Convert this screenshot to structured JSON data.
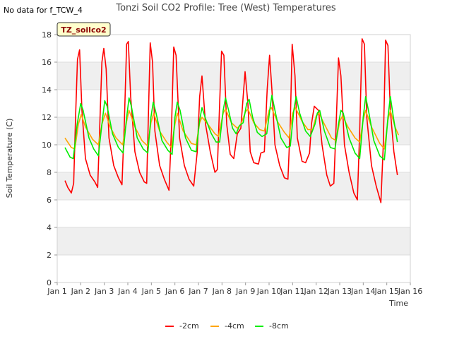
{
  "chart_data": {
    "type": "line",
    "title": "Tonzi Soil CO2 Profile: Tree (West) Temperatures",
    "no_data_note": "No data for f_TCW_4",
    "badge": "TZ_soilco2",
    "xlabel": "Time",
    "ylabel": "Soil Temperature (C)",
    "xlim": [
      1,
      16
    ],
    "ylim": [
      0,
      18
    ],
    "x_ticks": [
      {
        "v": 1,
        "label": "Jan 1"
      },
      {
        "v": 2,
        "label": "Jan 2"
      },
      {
        "v": 3,
        "label": "Jan 3"
      },
      {
        "v": 4,
        "label": "Jan 4"
      },
      {
        "v": 5,
        "label": "Jan 5"
      },
      {
        "v": 6,
        "label": "Jan 6"
      },
      {
        "v": 7,
        "label": "Jan 7"
      },
      {
        "v": 8,
        "label": "Jan 8"
      },
      {
        "v": 9,
        "label": "Jan 9"
      },
      {
        "v": 10,
        "label": "Jan 10"
      },
      {
        "v": 11,
        "label": "Jan 11"
      },
      {
        "v": 12,
        "label": "Jan 12"
      },
      {
        "v": 13,
        "label": "Jan 13"
      },
      {
        "v": 14,
        "label": "Jan 14"
      },
      {
        "v": 15,
        "label": "Jan 15"
      },
      {
        "v": 16,
        "label": "Jan 16"
      }
    ],
    "y_ticks": [
      0,
      2,
      4,
      6,
      8,
      10,
      12,
      14,
      16,
      18
    ],
    "series": [
      {
        "name": "-2cm",
        "color": "#ff0000",
        "points": [
          [
            1.33,
            7.4
          ],
          [
            1.45,
            6.9
          ],
          [
            1.6,
            6.5
          ],
          [
            1.7,
            7.2
          ],
          [
            1.78,
            12.0
          ],
          [
            1.86,
            16.2
          ],
          [
            1.95,
            16.9
          ],
          [
            2.05,
            12.5
          ],
          [
            2.2,
            9.0
          ],
          [
            2.4,
            7.8
          ],
          [
            2.6,
            7.3
          ],
          [
            2.72,
            6.9
          ],
          [
            2.8,
            11.0
          ],
          [
            2.9,
            16.0
          ],
          [
            2.98,
            17.0
          ],
          [
            3.08,
            15.5
          ],
          [
            3.2,
            10.5
          ],
          [
            3.4,
            8.5
          ],
          [
            3.6,
            7.6
          ],
          [
            3.75,
            7.1
          ],
          [
            3.85,
            11.5
          ],
          [
            3.95,
            17.3
          ],
          [
            4.02,
            17.5
          ],
          [
            4.12,
            13.5
          ],
          [
            4.3,
            9.5
          ],
          [
            4.5,
            8.0
          ],
          [
            4.7,
            7.3
          ],
          [
            4.8,
            7.2
          ],
          [
            4.88,
            12.5
          ],
          [
            4.95,
            17.4
          ],
          [
            5.05,
            16.0
          ],
          [
            5.15,
            11.0
          ],
          [
            5.35,
            8.5
          ],
          [
            5.55,
            7.5
          ],
          [
            5.75,
            6.7
          ],
          [
            5.85,
            11.0
          ],
          [
            5.95,
            17.1
          ],
          [
            6.05,
            16.5
          ],
          [
            6.2,
            10.5
          ],
          [
            6.4,
            8.5
          ],
          [
            6.6,
            7.5
          ],
          [
            6.8,
            7.0
          ],
          [
            6.95,
            9.5
          ],
          [
            7.05,
            13.5
          ],
          [
            7.15,
            15.0
          ],
          [
            7.3,
            11.5
          ],
          [
            7.5,
            9.5
          ],
          [
            7.7,
            8.0
          ],
          [
            7.8,
            8.2
          ],
          [
            7.9,
            13.0
          ],
          [
            7.98,
            16.8
          ],
          [
            8.08,
            16.5
          ],
          [
            8.2,
            11.5
          ],
          [
            8.35,
            9.3
          ],
          [
            8.5,
            9.0
          ],
          [
            8.65,
            10.8
          ],
          [
            8.8,
            11.2
          ],
          [
            8.9,
            13.5
          ],
          [
            8.98,
            15.3
          ],
          [
            9.1,
            13.0
          ],
          [
            9.2,
            9.5
          ],
          [
            9.35,
            8.7
          ],
          [
            9.55,
            8.6
          ],
          [
            9.65,
            9.4
          ],
          [
            9.8,
            9.5
          ],
          [
            9.92,
            14.0
          ],
          [
            10.02,
            16.5
          ],
          [
            10.12,
            14.0
          ],
          [
            10.25,
            10.0
          ],
          [
            10.45,
            8.5
          ],
          [
            10.65,
            7.6
          ],
          [
            10.8,
            7.5
          ],
          [
            10.9,
            11.5
          ],
          [
            10.98,
            17.3
          ],
          [
            11.1,
            15.0
          ],
          [
            11.2,
            10.5
          ],
          [
            11.4,
            8.8
          ],
          [
            11.55,
            8.7
          ],
          [
            11.72,
            9.4
          ],
          [
            11.8,
            11.5
          ],
          [
            11.92,
            12.8
          ],
          [
            12.1,
            12.5
          ],
          [
            12.25,
            10.0
          ],
          [
            12.45,
            7.8
          ],
          [
            12.6,
            7.0
          ],
          [
            12.75,
            7.2
          ],
          [
            12.85,
            11.5
          ],
          [
            12.95,
            16.3
          ],
          [
            13.05,
            15.0
          ],
          [
            13.2,
            10.0
          ],
          [
            13.4,
            8.0
          ],
          [
            13.6,
            6.5
          ],
          [
            13.75,
            6.0
          ],
          [
            13.85,
            11.0
          ],
          [
            13.95,
            17.7
          ],
          [
            14.05,
            17.3
          ],
          [
            14.15,
            12.0
          ],
          [
            14.35,
            8.5
          ],
          [
            14.55,
            7.0
          ],
          [
            14.75,
            5.8
          ],
          [
            14.85,
            10.0
          ],
          [
            14.95,
            17.6
          ],
          [
            15.05,
            17.2
          ],
          [
            15.15,
            12.5
          ],
          [
            15.3,
            9.5
          ],
          [
            15.45,
            7.8
          ]
        ]
      },
      {
        "name": "-4cm",
        "color": "#ffa500",
        "points": [
          [
            1.33,
            10.5
          ],
          [
            1.6,
            9.8
          ],
          [
            1.75,
            9.7
          ],
          [
            1.9,
            11.5
          ],
          [
            2.02,
            12.2
          ],
          [
            2.2,
            11.3
          ],
          [
            2.5,
            10.4
          ],
          [
            2.75,
            10.0
          ],
          [
            2.9,
            11.5
          ],
          [
            3.05,
            12.3
          ],
          [
            3.25,
            11.3
          ],
          [
            3.5,
            10.5
          ],
          [
            3.78,
            10.0
          ],
          [
            3.95,
            11.7
          ],
          [
            4.05,
            12.5
          ],
          [
            4.3,
            11.3
          ],
          [
            4.6,
            10.3
          ],
          [
            4.85,
            9.9
          ],
          [
            4.98,
            11.6
          ],
          [
            5.1,
            12.3
          ],
          [
            5.35,
            11.0
          ],
          [
            5.65,
            10.2
          ],
          [
            5.85,
            9.8
          ],
          [
            6.0,
            11.5
          ],
          [
            6.1,
            12.3
          ],
          [
            6.35,
            11.0
          ],
          [
            6.7,
            10.1
          ],
          [
            6.9,
            10.0
          ],
          [
            7.05,
            11.6
          ],
          [
            7.15,
            12.0
          ],
          [
            7.4,
            11.5
          ],
          [
            7.7,
            10.8
          ],
          [
            7.85,
            10.6
          ],
          [
            8.05,
            12.3
          ],
          [
            8.15,
            12.6
          ],
          [
            8.4,
            11.6
          ],
          [
            8.65,
            11.2
          ],
          [
            8.8,
            11.5
          ],
          [
            9.0,
            12.4
          ],
          [
            9.1,
            12.6
          ],
          [
            9.35,
            11.6
          ],
          [
            9.6,
            11.1
          ],
          [
            9.8,
            11.0
          ],
          [
            10.0,
            12.5
          ],
          [
            10.1,
            12.7
          ],
          [
            10.35,
            11.7
          ],
          [
            10.65,
            10.9
          ],
          [
            10.85,
            10.5
          ],
          [
            11.0,
            12.3
          ],
          [
            11.12,
            12.7
          ],
          [
            11.4,
            11.7
          ],
          [
            11.65,
            11.1
          ],
          [
            11.85,
            11.1
          ],
          [
            12.0,
            12.1
          ],
          [
            12.12,
            12.3
          ],
          [
            12.35,
            11.5
          ],
          [
            12.65,
            10.5
          ],
          [
            12.85,
            10.3
          ],
          [
            13.0,
            11.7
          ],
          [
            13.12,
            12.1
          ],
          [
            13.35,
            11.3
          ],
          [
            13.65,
            10.5
          ],
          [
            13.85,
            10.2
          ],
          [
            14.0,
            11.8
          ],
          [
            14.1,
            12.5
          ],
          [
            14.35,
            11.3
          ],
          [
            14.7,
            10.1
          ],
          [
            14.9,
            9.7
          ],
          [
            15.05,
            11.8
          ],
          [
            15.15,
            12.5
          ],
          [
            15.35,
            11.3
          ],
          [
            15.5,
            10.7
          ]
        ]
      },
      {
        "name": "-8cm",
        "color": "#00ee00",
        "points": [
          [
            1.33,
            9.8
          ],
          [
            1.55,
            9.1
          ],
          [
            1.68,
            9.0
          ],
          [
            1.85,
            11.5
          ],
          [
            2.0,
            13.0
          ],
          [
            2.1,
            12.5
          ],
          [
            2.35,
            10.5
          ],
          [
            2.55,
            9.7
          ],
          [
            2.75,
            9.2
          ],
          [
            2.9,
            11.5
          ],
          [
            3.02,
            13.2
          ],
          [
            3.12,
            12.8
          ],
          [
            3.35,
            10.8
          ],
          [
            3.6,
            9.8
          ],
          [
            3.8,
            9.4
          ],
          [
            3.95,
            12.0
          ],
          [
            4.05,
            13.4
          ],
          [
            4.15,
            12.8
          ],
          [
            4.4,
            10.5
          ],
          [
            4.65,
            9.7
          ],
          [
            4.85,
            9.4
          ],
          [
            4.98,
            12.0
          ],
          [
            5.08,
            13.1
          ],
          [
            5.2,
            12.3
          ],
          [
            5.45,
            10.3
          ],
          [
            5.7,
            9.6
          ],
          [
            5.88,
            9.3
          ],
          [
            6.0,
            12.0
          ],
          [
            6.1,
            13.1
          ],
          [
            6.22,
            12.5
          ],
          [
            6.45,
            10.5
          ],
          [
            6.7,
            9.6
          ],
          [
            6.9,
            9.5
          ],
          [
            7.05,
            11.8
          ],
          [
            7.15,
            12.7
          ],
          [
            7.3,
            11.9
          ],
          [
            7.55,
            10.8
          ],
          [
            7.75,
            10.2
          ],
          [
            7.9,
            10.2
          ],
          [
            8.05,
            12.5
          ],
          [
            8.15,
            13.4
          ],
          [
            8.28,
            12.5
          ],
          [
            8.45,
            11.2
          ],
          [
            8.6,
            10.8
          ],
          [
            8.75,
            11.4
          ],
          [
            8.9,
            11.6
          ],
          [
            9.05,
            13.0
          ],
          [
            9.15,
            13.3
          ],
          [
            9.3,
            12.0
          ],
          [
            9.5,
            10.9
          ],
          [
            9.7,
            10.6
          ],
          [
            9.9,
            10.8
          ],
          [
            10.05,
            12.8
          ],
          [
            10.12,
            13.6
          ],
          [
            10.25,
            12.5
          ],
          [
            10.5,
            10.5
          ],
          [
            10.75,
            9.8
          ],
          [
            10.9,
            9.9
          ],
          [
            11.05,
            12.5
          ],
          [
            11.15,
            13.5
          ],
          [
            11.3,
            12.3
          ],
          [
            11.55,
            11.0
          ],
          [
            11.75,
            10.6
          ],
          [
            11.95,
            11.5
          ],
          [
            12.05,
            12.3
          ],
          [
            12.15,
            12.5
          ],
          [
            12.35,
            11.0
          ],
          [
            12.6,
            9.8
          ],
          [
            12.8,
            9.7
          ],
          [
            12.95,
            11.5
          ],
          [
            13.05,
            12.5
          ],
          [
            13.15,
            12.3
          ],
          [
            13.4,
            10.5
          ],
          [
            13.65,
            9.4
          ],
          [
            13.85,
            9.0
          ],
          [
            14.0,
            12.0
          ],
          [
            14.1,
            13.5
          ],
          [
            14.22,
            12.5
          ],
          [
            14.45,
            10.3
          ],
          [
            14.7,
            9.2
          ],
          [
            14.9,
            8.9
          ],
          [
            15.05,
            12.0
          ],
          [
            15.15,
            13.5
          ],
          [
            15.28,
            12.0
          ],
          [
            15.45,
            10.2
          ]
        ]
      }
    ]
  }
}
